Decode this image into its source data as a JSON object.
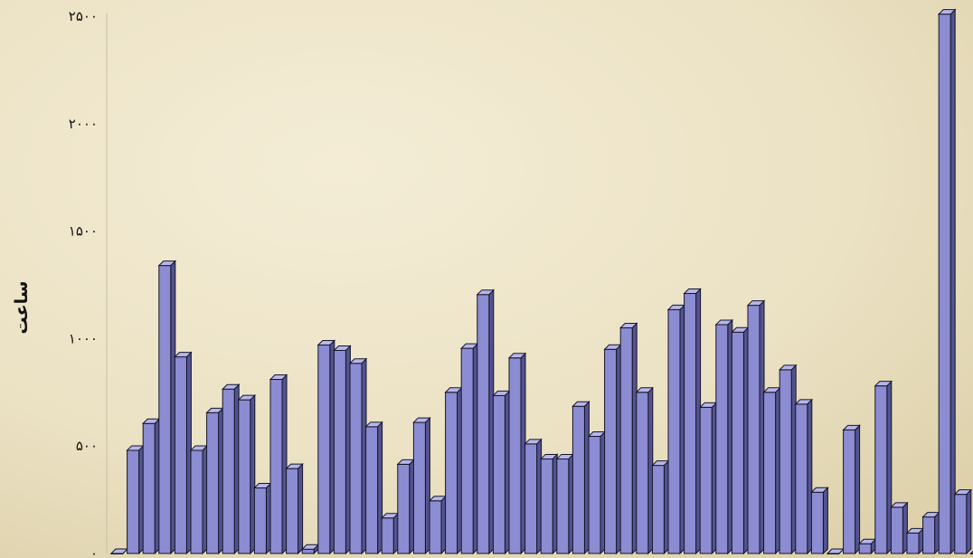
{
  "colors": {
    "background": "#efe6c8",
    "bar_front": "#8c8cd2",
    "bar_side": "#53538f",
    "bar_top": "#b6b6ea",
    "bar_outline": "#141428",
    "axis": "#c8bfa2"
  },
  "chart_data": {
    "type": "bar",
    "style": "3d-columns",
    "title": "",
    "xlabel": "",
    "ylabel": "ساعت",
    "ylim": [
      0,
      2500
    ],
    "yticks": [
      {
        "value": 0,
        "label": "۰"
      },
      {
        "value": 500,
        "label": "۵۰۰"
      },
      {
        "value": 1000,
        "label": "۱۰۰۰"
      },
      {
        "value": 1500,
        "label": "۱۵۰۰"
      },
      {
        "value": 2000,
        "label": "۲۰۰۰"
      },
      {
        "value": 2500,
        "label": "۲۵۰۰"
      }
    ],
    "grid": false,
    "legend": "none",
    "values": [
      0,
      480,
      605,
      1340,
      915,
      480,
      655,
      765,
      715,
      305,
      810,
      395,
      20,
      970,
      945,
      885,
      590,
      165,
      415,
      610,
      245,
      750,
      955,
      1205,
      735,
      910,
      510,
      440,
      440,
      685,
      545,
      950,
      1050,
      750,
      410,
      1135,
      1210,
      680,
      1065,
      1030,
      1155,
      750,
      855,
      695,
      285,
      0,
      575,
      45,
      780,
      215,
      95,
      170,
      2510,
      275,
      0
    ]
  }
}
